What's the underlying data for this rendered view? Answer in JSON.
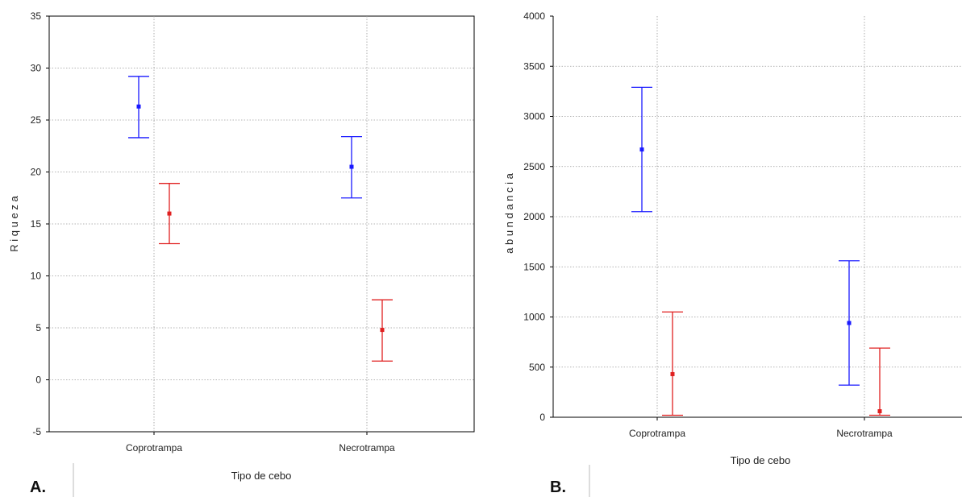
{
  "chart_data": [
    {
      "type": "errorbar",
      "panel_label": "A.",
      "xlabel": "Tipo de cebo",
      "ylabel": "R i q u e z a",
      "categories": [
        "Coprotrampa",
        "Necrotrampa"
      ],
      "ylim": [
        -5,
        35
      ],
      "yticks": [
        -5,
        0,
        5,
        10,
        15,
        20,
        25,
        30,
        35
      ],
      "grid": true,
      "series": [
        {
          "color": "#1a1aff",
          "means": [
            26.3,
            20.5
          ],
          "lower": [
            23.3,
            17.5
          ],
          "upper": [
            29.2,
            23.4
          ]
        },
        {
          "color": "#e02020",
          "means": [
            16.0,
            4.8
          ],
          "lower": [
            13.1,
            1.8
          ],
          "upper": [
            18.9,
            7.7
          ]
        }
      ]
    },
    {
      "type": "errorbar",
      "panel_label": "B.",
      "xlabel": "Tipo de cebo",
      "ylabel": "a b u n d a n c i a",
      "categories": [
        "Coprotrampa",
        "Necrotrampa"
      ],
      "ylim": [
        0,
        4000
      ],
      "yticks": [
        0,
        500,
        1000,
        1500,
        2000,
        2500,
        3000,
        3500,
        4000
      ],
      "grid": true,
      "series": [
        {
          "color": "#1a1aff",
          "means": [
            2670,
            940
          ],
          "lower": [
            2050,
            320
          ],
          "upper": [
            3290,
            1560
          ]
        },
        {
          "color": "#e02020",
          "means": [
            430,
            60
          ],
          "lower": [
            20,
            20
          ],
          "upper": [
            1050,
            690
          ]
        }
      ]
    }
  ]
}
